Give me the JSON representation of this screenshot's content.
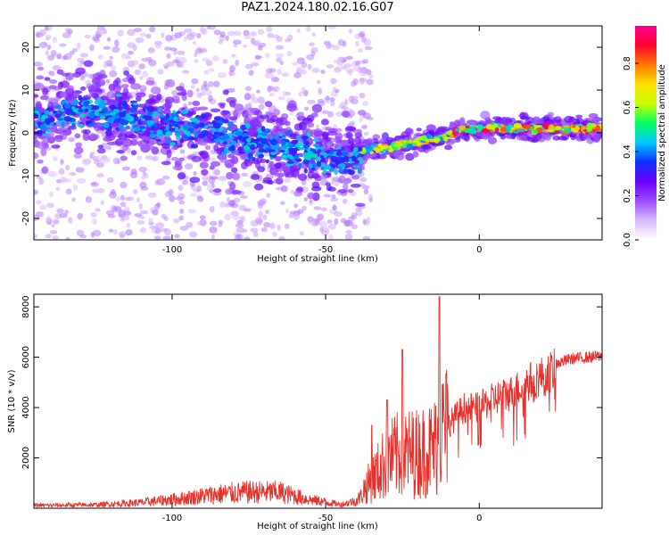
{
  "title": "PAZ1.2024.180.02.16.G07",
  "colors": {
    "snr_line": "#e8302a",
    "colormap": [
      "#ffffff",
      "#d9b8ff",
      "#9b4dff",
      "#6a00ff",
      "#1030ff",
      "#00c8ff",
      "#00ff60",
      "#c8ff00",
      "#ffe000",
      "#ff7a00",
      "#ff0030",
      "#ff0090"
    ]
  },
  "chart_data": [
    {
      "type": "heatmap",
      "title": "",
      "xlabel": "Height of straight line (km)",
      "ylabel": "Frequency (Hz)",
      "xlim": [
        -145,
        40
      ],
      "ylim": [
        -25,
        25
      ],
      "xticks": [
        -100,
        -50,
        0
      ],
      "yticks": [
        20,
        10,
        0,
        -10,
        -20
      ],
      "xtick_labels": [
        "-100",
        "-50",
        "0"
      ],
      "ytick_labels": [
        "20",
        "10",
        "0",
        "-10",
        "-20"
      ],
      "colorbar": {
        "label": "Normalized spectral amplitude",
        "range": [
          0,
          0.97
        ],
        "ticks": [
          0.0,
          0.2,
          0.4,
          0.6,
          0.8
        ],
        "tick_labels": [
          "0.0",
          "0.2",
          "0.4",
          "0.6",
          "0.8"
        ]
      },
      "ridge": [
        {
          "x": -145,
          "f": 3
        },
        {
          "x": -130,
          "f": 5
        },
        {
          "x": -120,
          "f": 5
        },
        {
          "x": -105,
          "f": 2
        },
        {
          "x": -90,
          "f": 0
        },
        {
          "x": -75,
          "f": -2
        },
        {
          "x": -60,
          "f": -4
        },
        {
          "x": -50,
          "f": -6
        },
        {
          "x": -42,
          "f": -6
        },
        {
          "x": -38,
          "f": -4
        },
        {
          "x": -30,
          "f": -3.5
        },
        {
          "x": -20,
          "f": -2
        },
        {
          "x": -12,
          "f": -1
        },
        {
          "x": -8,
          "f": 0
        },
        {
          "x": -5,
          "f": 1
        },
        {
          "x": 0,
          "f": 1
        },
        {
          "x": 10,
          "f": 1
        },
        {
          "x": 20,
          "f": 1
        },
        {
          "x": 30,
          "f": 1
        },
        {
          "x": 40,
          "f": 1
        }
      ]
    },
    {
      "type": "line",
      "title": "",
      "xlabel": "Height of straight line (km)",
      "ylabel": "SNR (10 * v/v)",
      "xlim": [
        -145,
        40
      ],
      "ylim": [
        0,
        8500
      ],
      "xticks": [
        -100,
        -50,
        0
      ],
      "yticks": [
        2000,
        4000,
        6000,
        8000
      ],
      "xtick_labels": [
        "-100",
        "-50",
        "0"
      ],
      "ytick_labels": [
        "2000",
        "4000",
        "6000",
        "8000"
      ],
      "envelope": [
        {
          "x": -145,
          "y": 150
        },
        {
          "x": -125,
          "y": 180
        },
        {
          "x": -110,
          "y": 300
        },
        {
          "x": -95,
          "y": 550
        },
        {
          "x": -85,
          "y": 750
        },
        {
          "x": -75,
          "y": 850
        },
        {
          "x": -65,
          "y": 850
        },
        {
          "x": -55,
          "y": 450
        },
        {
          "x": -45,
          "y": 200
        },
        {
          "x": -40,
          "y": 400
        },
        {
          "x": -35,
          "y": 1200
        },
        {
          "x": -30,
          "y": 2000
        },
        {
          "x": -25,
          "y": 2300
        },
        {
          "x": -20,
          "y": 2300
        },
        {
          "x": -15,
          "y": 2500
        },
        {
          "x": -10,
          "y": 3500
        },
        {
          "x": -5,
          "y": 4200
        },
        {
          "x": 0,
          "y": 4200
        },
        {
          "x": 5,
          "y": 4600
        },
        {
          "x": 10,
          "y": 4800
        },
        {
          "x": 15,
          "y": 5200
        },
        {
          "x": 20,
          "y": 5500
        },
        {
          "x": 25,
          "y": 5800
        },
        {
          "x": 30,
          "y": 6000
        },
        {
          "x": 40,
          "y": 6100
        }
      ],
      "peaks": [
        {
          "x": -13,
          "y": 8400
        },
        {
          "x": -25,
          "y": 6300
        },
        {
          "x": -30,
          "y": 4300
        },
        {
          "x": -12,
          "y": 4900
        },
        {
          "x": -35,
          "y": 3300
        }
      ]
    }
  ]
}
